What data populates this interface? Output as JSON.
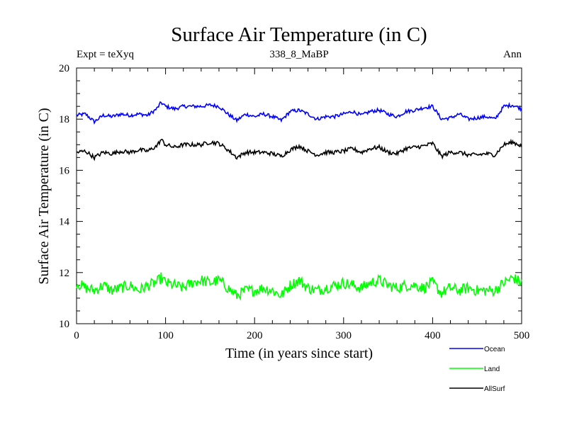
{
  "chart_data": {
    "type": "line",
    "title": "Surface Air Temperature (in C)",
    "subtitle": "338_8_MaBP",
    "left_note": "Expt = teXyq",
    "right_note": "Ann",
    "xlabel": "Time (in years since start)",
    "ylabel": "Surface Air Temperature (in C)",
    "xlim": [
      0,
      500
    ],
    "ylim": [
      10,
      20
    ],
    "x_ticks": [
      0,
      100,
      200,
      300,
      400,
      500
    ],
    "y_ticks": [
      10,
      12,
      14,
      16,
      18,
      20
    ],
    "x_tick_labels": [
      "0",
      "100",
      "200",
      "300",
      "400",
      "500"
    ],
    "y_tick_labels": [
      "10",
      "12",
      "14",
      "16",
      "18",
      "20"
    ],
    "grid": false,
    "legend_position": "bottom-right",
    "series": [
      {
        "name": "Ocean",
        "color": "#0000ff",
        "x": [
          0,
          10,
          20,
          30,
          40,
          50,
          60,
          70,
          80,
          90,
          95,
          100,
          110,
          120,
          130,
          140,
          150,
          160,
          170,
          180,
          190,
          200,
          210,
          220,
          230,
          240,
          250,
          260,
          270,
          280,
          290,
          300,
          310,
          320,
          330,
          340,
          350,
          360,
          370,
          380,
          390,
          400,
          410,
          420,
          430,
          440,
          450,
          460,
          470,
          480,
          490,
          500
        ],
        "values": [
          18.15,
          18.2,
          17.9,
          18.15,
          18.1,
          18.2,
          18.15,
          18.2,
          18.15,
          18.4,
          18.65,
          18.5,
          18.4,
          18.5,
          18.5,
          18.5,
          18.55,
          18.5,
          18.2,
          17.95,
          18.2,
          18.1,
          18.2,
          18.1,
          17.95,
          18.3,
          18.35,
          18.2,
          18.0,
          18.1,
          18.1,
          18.2,
          18.3,
          18.15,
          18.3,
          18.35,
          18.2,
          18.1,
          18.3,
          18.35,
          18.45,
          18.5,
          18.0,
          18.05,
          18.2,
          18.0,
          18.05,
          18.1,
          18.0,
          18.5,
          18.55,
          18.4
        ]
      },
      {
        "name": "Land",
        "color": "#00ff00",
        "x": [
          0,
          10,
          20,
          30,
          40,
          50,
          60,
          70,
          80,
          90,
          95,
          100,
          110,
          120,
          130,
          140,
          150,
          160,
          170,
          180,
          190,
          200,
          210,
          220,
          230,
          240,
          250,
          260,
          270,
          280,
          290,
          300,
          310,
          320,
          330,
          340,
          350,
          360,
          370,
          380,
          390,
          400,
          410,
          420,
          430,
          440,
          450,
          460,
          470,
          480,
          490,
          500
        ],
        "values": [
          11.6,
          11.4,
          11.3,
          11.5,
          11.3,
          11.4,
          11.5,
          11.3,
          11.5,
          11.6,
          11.8,
          11.6,
          11.5,
          11.4,
          11.6,
          11.7,
          11.6,
          11.7,
          11.4,
          11.1,
          11.3,
          11.3,
          11.4,
          11.3,
          11.1,
          11.5,
          11.7,
          11.4,
          11.3,
          11.4,
          11.5,
          11.6,
          11.5,
          11.4,
          11.6,
          11.7,
          11.5,
          11.4,
          11.5,
          11.5,
          11.4,
          11.6,
          11.2,
          11.4,
          11.3,
          11.4,
          11.3,
          11.3,
          11.3,
          11.6,
          11.8,
          11.6
        ]
      },
      {
        "name": "AllSurf",
        "color": "#000000",
        "x": [
          0,
          10,
          20,
          30,
          40,
          50,
          60,
          70,
          80,
          90,
          95,
          100,
          110,
          120,
          130,
          140,
          150,
          160,
          170,
          180,
          190,
          200,
          210,
          220,
          230,
          240,
          250,
          260,
          270,
          280,
          290,
          300,
          310,
          320,
          330,
          340,
          350,
          360,
          370,
          380,
          390,
          400,
          410,
          420,
          430,
          440,
          450,
          460,
          470,
          480,
          490,
          500
        ],
        "values": [
          16.7,
          16.75,
          16.5,
          16.7,
          16.65,
          16.75,
          16.7,
          16.8,
          16.75,
          16.95,
          17.2,
          17.0,
          16.9,
          17.0,
          17.0,
          17.0,
          17.1,
          17.05,
          16.8,
          16.5,
          16.7,
          16.7,
          16.7,
          16.65,
          16.55,
          16.8,
          16.95,
          16.75,
          16.6,
          16.7,
          16.7,
          16.75,
          16.85,
          16.7,
          16.85,
          16.9,
          16.7,
          16.65,
          16.85,
          16.9,
          16.95,
          17.05,
          16.55,
          16.7,
          16.7,
          16.6,
          16.6,
          16.65,
          16.6,
          17.0,
          17.1,
          16.95
        ]
      }
    ]
  }
}
